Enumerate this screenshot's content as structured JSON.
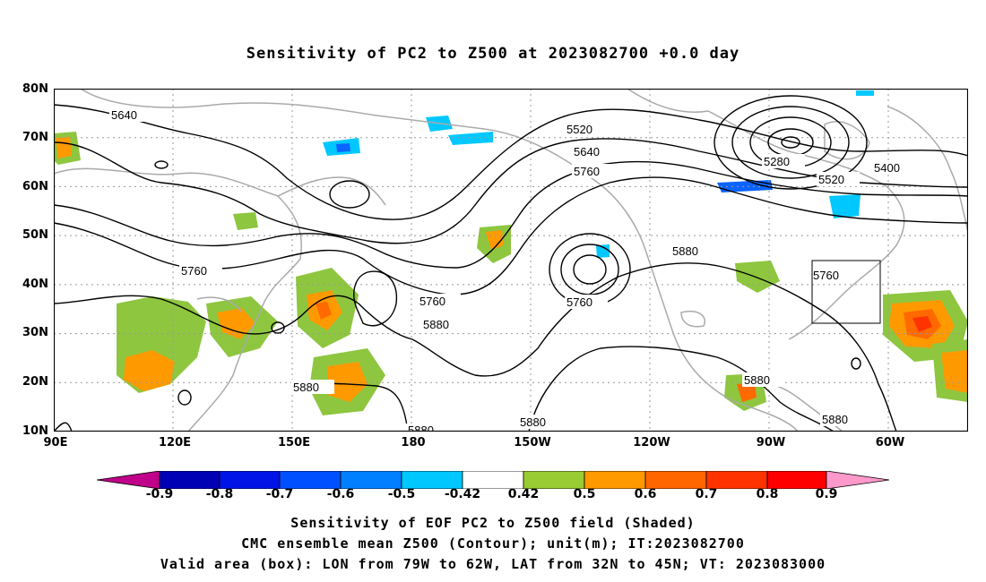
{
  "title": "Sensitivity of PC2 to Z500 at 2023082700 +0.0 day",
  "map": {
    "lat_labels": [
      "80N",
      "70N",
      "60N",
      "50N",
      "40N",
      "30N",
      "20N",
      "10N"
    ],
    "lon_labels": [
      "90E",
      "120E",
      "150E",
      "180",
      "150W",
      "120W",
      "90W",
      "60W"
    ],
    "contour_labels": [
      "5640",
      "5520",
      "5640",
      "5760",
      "5280",
      "5400",
      "5520",
      "5760",
      "5760",
      "5880",
      "5760",
      "5880",
      "5880",
      "5880",
      "5760",
      "5880",
      "5880",
      "5880"
    ],
    "valid_box": {
      "lon_from": "79W",
      "lon_to": "62W",
      "lat_from": "32N",
      "lat_to": "45N"
    },
    "colors": {
      "contour": "#000000",
      "coast": "#aaaaaa",
      "grid": "#999999",
      "pos_green": "#8ec63f",
      "pos_orange": "#ff9900",
      "pos_darkorange": "#ff6a00",
      "pos_red": "#ff3300",
      "neg_cyan": "#00c8ff",
      "neg_blue": "#0a64ff"
    }
  },
  "colorbar": {
    "labels": [
      "-0.9",
      "-0.8",
      "-0.7",
      "-0.6",
      "-0.5",
      "-0.42",
      "0.42",
      "0.5",
      "0.6",
      "0.7",
      "0.8",
      "0.9"
    ],
    "colors": [
      "#c0008a",
      "#0000b4",
      "#0014e6",
      "#0050ff",
      "#0080ff",
      "#00c8ff",
      "#ffffff",
      "#99cc33",
      "#ff9900",
      "#ff6600",
      "#ff3300",
      "#ff0000",
      "#ff99cc"
    ]
  },
  "footer": {
    "line1": "Sensitivity of EOF PC2 to Z500 field (Shaded)",
    "line2": "CMC ensemble mean Z500 (Contour); unit(m); IT:2023082700",
    "line3": "Valid area (box): LON from 79W to 62W, LAT from 32N to 45N; VT: 2023083000"
  }
}
